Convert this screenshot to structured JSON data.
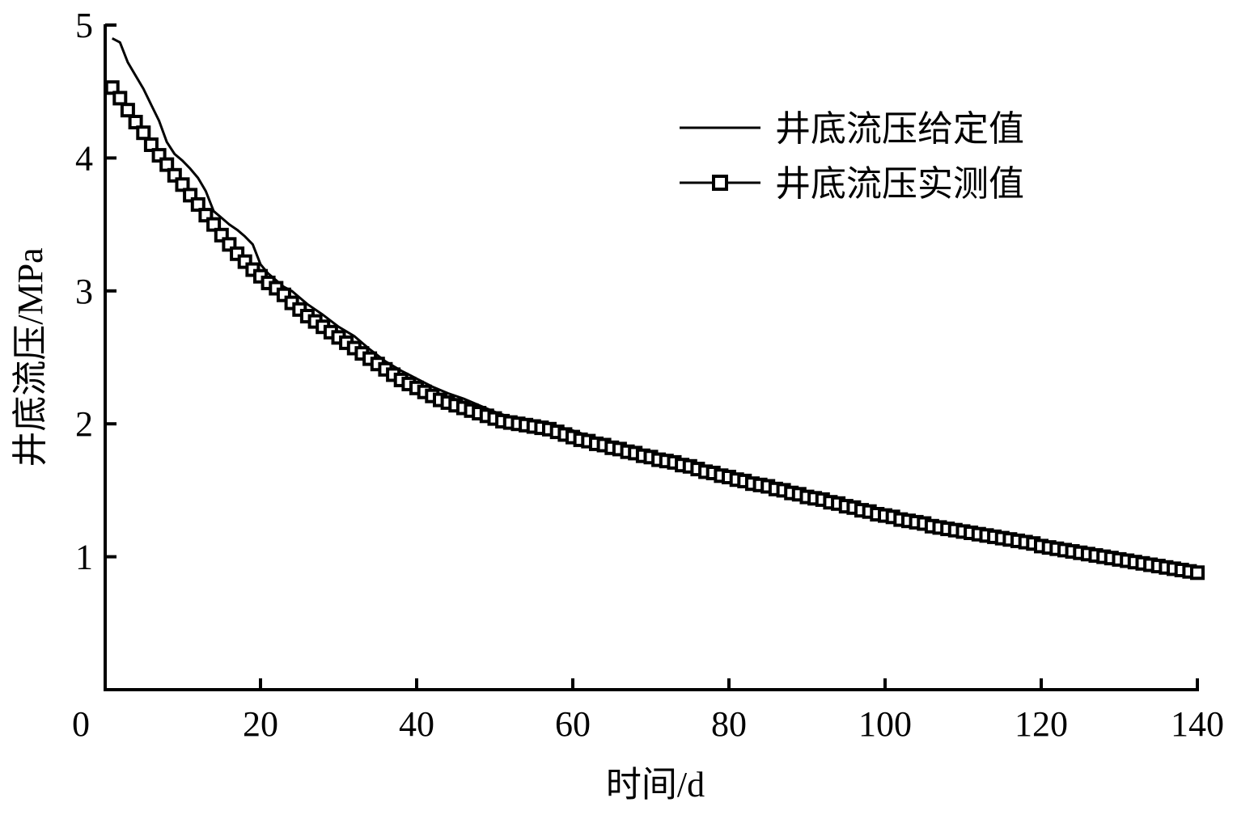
{
  "chart_data": {
    "type": "line",
    "title": "",
    "xlabel": "时间/d",
    "ylabel": "井底流压/MPa",
    "xlim": [
      0,
      140
    ],
    "ylim": [
      0,
      5
    ],
    "xticks": [
      0,
      20,
      40,
      60,
      80,
      100,
      120,
      140
    ],
    "yticks": [
      1,
      2,
      3,
      4,
      5
    ],
    "grid": false,
    "legend_position": "upper right",
    "series": [
      {
        "name": "井底流压给定值",
        "style": "solid-line",
        "x": [
          1,
          2,
          3,
          4,
          5,
          6,
          7,
          8,
          9,
          10,
          11,
          12,
          13,
          14,
          15,
          16,
          17,
          18,
          19,
          20,
          21,
          22,
          23,
          24,
          25,
          26,
          28,
          30,
          32,
          34,
          36,
          38,
          40,
          42,
          44,
          46,
          48,
          50,
          52,
          54,
          56,
          58,
          60,
          62,
          64,
          66,
          68,
          70,
          72,
          74,
          76,
          78,
          80,
          82,
          84,
          86,
          88,
          90,
          92,
          94,
          96,
          98,
          100,
          102,
          104,
          106,
          108,
          110,
          112,
          114,
          116,
          118,
          120,
          122,
          124,
          126,
          128,
          130,
          132,
          134,
          136,
          138,
          140
        ],
        "values": [
          4.9,
          4.87,
          4.72,
          4.62,
          4.52,
          4.4,
          4.28,
          4.12,
          4.03,
          3.98,
          3.92,
          3.85,
          3.75,
          3.6,
          3.55,
          3.5,
          3.46,
          3.41,
          3.35,
          3.2,
          3.13,
          3.08,
          3.03,
          3.0,
          2.95,
          2.9,
          2.82,
          2.73,
          2.66,
          2.56,
          2.47,
          2.4,
          2.34,
          2.28,
          2.23,
          2.19,
          2.14,
          2.09,
          2.05,
          2.03,
          2.01,
          1.98,
          1.95,
          1.91,
          1.88,
          1.84,
          1.8,
          1.76,
          1.73,
          1.7,
          1.67,
          1.63,
          1.6,
          1.57,
          1.55,
          1.51,
          1.47,
          1.44,
          1.41,
          1.38,
          1.35,
          1.32,
          1.29,
          1.26,
          1.23,
          1.21,
          1.19,
          1.17,
          1.14,
          1.12,
          1.1,
          1.08,
          1.05,
          1.02,
          1.0,
          0.98,
          0.97,
          0.95,
          0.93,
          0.92,
          0.9,
          0.89,
          0.88
        ]
      },
      {
        "name": "井底流压实测值",
        "style": "line-square-markers",
        "x": [
          1,
          2,
          3,
          4,
          5,
          6,
          7,
          8,
          9,
          10,
          11,
          12,
          13,
          14,
          15,
          16,
          17,
          18,
          19,
          20,
          21,
          22,
          23,
          24,
          25,
          26,
          27,
          28,
          29,
          30,
          31,
          32,
          33,
          34,
          35,
          36,
          37,
          38,
          39,
          40,
          41,
          42,
          43,
          44,
          45,
          46,
          47,
          48,
          49,
          50,
          51,
          52,
          53,
          54,
          55,
          56,
          57,
          58,
          59,
          60,
          61,
          62,
          63,
          64,
          65,
          66,
          67,
          68,
          69,
          70,
          71,
          72,
          73,
          74,
          75,
          76,
          77,
          78,
          79,
          80,
          81,
          82,
          83,
          84,
          85,
          86,
          87,
          88,
          89,
          90,
          91,
          92,
          93,
          94,
          95,
          96,
          97,
          98,
          99,
          100,
          101,
          102,
          103,
          104,
          105,
          106,
          107,
          108,
          109,
          110,
          111,
          112,
          113,
          114,
          115,
          116,
          117,
          118,
          119,
          120,
          121,
          122,
          123,
          124,
          125,
          126,
          127,
          128,
          129,
          130,
          131,
          132,
          133,
          134,
          135,
          136,
          137,
          138,
          139,
          140
        ],
        "values": [
          4.53,
          4.45,
          4.36,
          4.27,
          4.19,
          4.1,
          4.02,
          3.95,
          3.87,
          3.8,
          3.72,
          3.65,
          3.57,
          3.5,
          3.42,
          3.35,
          3.28,
          3.22,
          3.16,
          3.11,
          3.06,
          3.02,
          2.97,
          2.91,
          2.86,
          2.81,
          2.77,
          2.73,
          2.69,
          2.65,
          2.61,
          2.57,
          2.53,
          2.49,
          2.45,
          2.41,
          2.37,
          2.33,
          2.3,
          2.27,
          2.24,
          2.21,
          2.18,
          2.16,
          2.14,
          2.12,
          2.1,
          2.08,
          2.06,
          2.04,
          2.02,
          2.01,
          2.0,
          1.99,
          1.98,
          1.97,
          1.96,
          1.94,
          1.92,
          1.9,
          1.88,
          1.87,
          1.85,
          1.84,
          1.82,
          1.81,
          1.79,
          1.78,
          1.76,
          1.75,
          1.73,
          1.72,
          1.71,
          1.69,
          1.68,
          1.66,
          1.64,
          1.63,
          1.61,
          1.6,
          1.58,
          1.57,
          1.55,
          1.54,
          1.53,
          1.51,
          1.5,
          1.48,
          1.47,
          1.45,
          1.44,
          1.43,
          1.41,
          1.4,
          1.38,
          1.37,
          1.35,
          1.34,
          1.32,
          1.31,
          1.3,
          1.28,
          1.27,
          1.26,
          1.25,
          1.23,
          1.22,
          1.21,
          1.2,
          1.19,
          1.18,
          1.17,
          1.16,
          1.15,
          1.14,
          1.13,
          1.12,
          1.11,
          1.1,
          1.08,
          1.07,
          1.06,
          1.05,
          1.04,
          1.03,
          1.02,
          1.01,
          1.0,
          0.99,
          0.98,
          0.97,
          0.96,
          0.95,
          0.94,
          0.93,
          0.92,
          0.91,
          0.9,
          0.89,
          0.88
        ]
      }
    ]
  },
  "legend": {
    "items": [
      {
        "label": "井底流压给定值",
        "marker": "solid-line"
      },
      {
        "label": "井底流压实测值",
        "marker": "square-line"
      }
    ]
  },
  "axes": {
    "x_title": "时间/d",
    "y_title": "井底流压/MPa",
    "x_tick_labels": [
      "0",
      "20",
      "40",
      "60",
      "80",
      "100",
      "120",
      "140"
    ],
    "y_tick_labels": [
      "1",
      "2",
      "3",
      "4",
      "5"
    ]
  }
}
